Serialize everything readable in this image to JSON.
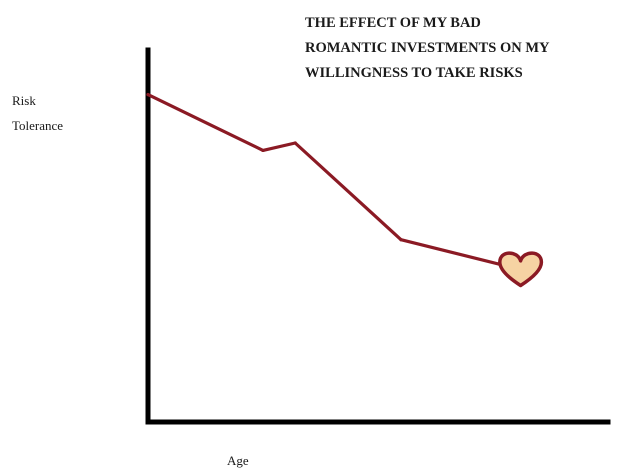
{
  "chart_data": {
    "type": "line",
    "title": "THE EFFECT OF MY BAD ROMANTIC INVESTMENTS ON MY WILLINGNESS TO TAKE RISKS",
    "title_lines": [
      "THE EFFECT OF MY BAD",
      "ROMANTIC INVESTMENTS ON MY",
      "WILLINGNESS TO TAKE RISKS"
    ],
    "xlabel": "Age",
    "ylabel": "Risk Tolerance",
    "ylabel_lines": [
      "Risk",
      "Tolerance"
    ],
    "xlim": [
      0,
      10
    ],
    "ylim": [
      0,
      10
    ],
    "grid": false,
    "legend": "none",
    "series": [
      {
        "x": [
          0,
          2.5,
          3.2,
          5.5,
          8.1
        ],
        "y": [
          8.8,
          7.3,
          7.5,
          4.9,
          4.1
        ],
        "end_marker": "heart-icon"
      }
    ],
    "colors": {
      "line": "#8b1a24",
      "heart_fill": "#f6d3a3",
      "heart_stroke": "#8b1a24",
      "axis": "#000000"
    }
  }
}
